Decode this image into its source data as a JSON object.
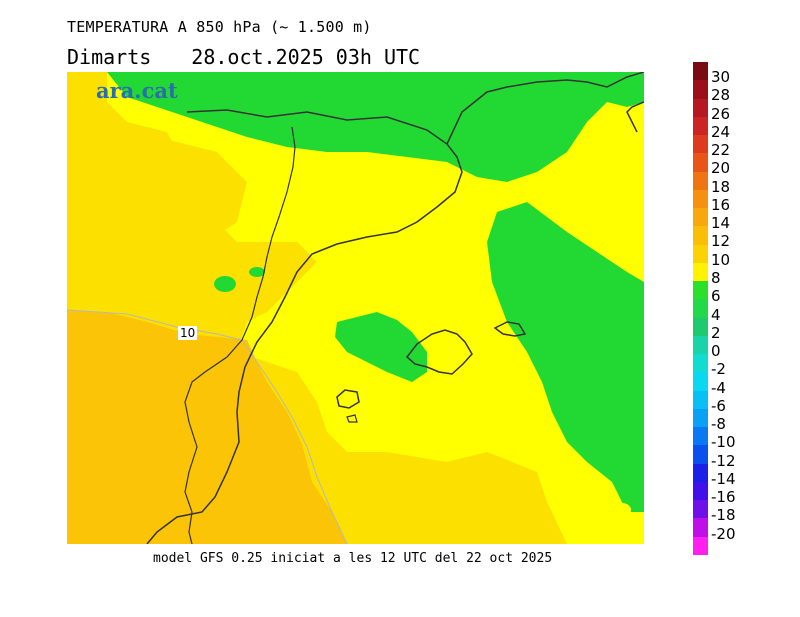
{
  "header": {
    "title": "TEMPERATURA A 850 hPa (~ 1.500 m)",
    "day": "Dimarts",
    "date": "28.oct.2025 03h UTC"
  },
  "logo": "ara.cat",
  "footer": "model GFS 0.25 iniciat a les 12 UTC del 22 oct 2025",
  "contour_label": "10",
  "legend": {
    "stops": [
      {
        "label": "30",
        "color": "#7a0a14"
      },
      {
        "label": "28",
        "color": "#9a0f1a"
      },
      {
        "label": "26",
        "color": "#b51822"
      },
      {
        "label": "24",
        "color": "#cc2424"
      },
      {
        "label": "22",
        "color": "#dd3a1e"
      },
      {
        "label": "20",
        "color": "#e85518"
      },
      {
        "label": "18",
        "color": "#ef7512"
      },
      {
        "label": "16",
        "color": "#f59010"
      },
      {
        "label": "14",
        "color": "#f8a80c"
      },
      {
        "label": "12",
        "color": "#fbbe07"
      },
      {
        "label": "10",
        "color": "#fdd204"
      },
      {
        "label": "8",
        "color": "#fff200"
      },
      {
        "label": "6",
        "color": "#2ae02a"
      },
      {
        "label": "4",
        "color": "#22d94a"
      },
      {
        "label": "2",
        "color": "#1ec970"
      },
      {
        "label": "0",
        "color": "#19d4a8"
      },
      {
        "label": "-2",
        "color": "#10dcd0"
      },
      {
        "label": "-4",
        "color": "#08d8f0"
      },
      {
        "label": "-6",
        "color": "#08c0f5"
      },
      {
        "label": "-8",
        "color": "#0aa0f5"
      },
      {
        "label": "-10",
        "color": "#0a78f2"
      },
      {
        "label": "-12",
        "color": "#0a50ee"
      },
      {
        "label": "-14",
        "color": "#1a20e8"
      },
      {
        "label": "-16",
        "color": "#4210e8"
      },
      {
        "label": "-18",
        "color": "#7010e8"
      },
      {
        "label": "-20",
        "color": "#c010e8"
      },
      {
        "label": "",
        "color": "#ff20f0"
      }
    ]
  },
  "colors": {
    "green": "#22d934",
    "yellow": "#ffff00",
    "light_orange": "#fbe000",
    "orange": "#fbc407",
    "border": "#333333"
  }
}
